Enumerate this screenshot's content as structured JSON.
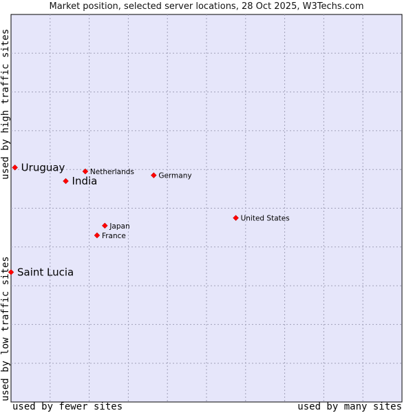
{
  "chart_data": {
    "type": "scatter",
    "title": "Market position, selected server locations, 28 Oct 2025, W3Techs.com",
    "xlabel_low": "used by fewer sites",
    "xlabel_high": "used by many sites",
    "ylabel_low": "used by low traffic sites",
    "ylabel_high": "used by high traffic sites",
    "xlim": [
      0,
      100
    ],
    "ylim": [
      0,
      100
    ],
    "grid": true,
    "points": [
      {
        "name": "Uruguay",
        "x": 1,
        "y": 60.5,
        "highlight": true
      },
      {
        "name": "India",
        "x": 14,
        "y": 57,
        "highlight": true
      },
      {
        "name": "Saint Lucia",
        "x": 0,
        "y": 33.5,
        "highlight": true
      },
      {
        "name": "Netherlands",
        "x": 19,
        "y": 59.5,
        "highlight": false
      },
      {
        "name": "Germany",
        "x": 36.5,
        "y": 58.5,
        "highlight": false
      },
      {
        "name": "United States",
        "x": 57.5,
        "y": 47.5,
        "highlight": false
      },
      {
        "name": "Japan",
        "x": 24,
        "y": 45.5,
        "highlight": false
      },
      {
        "name": "France",
        "x": 22,
        "y": 43,
        "highlight": false
      }
    ]
  },
  "colors": {
    "plot_background": "#e6e6fa",
    "marker": "#ff0000",
    "grid": "#a0a0b8"
  }
}
